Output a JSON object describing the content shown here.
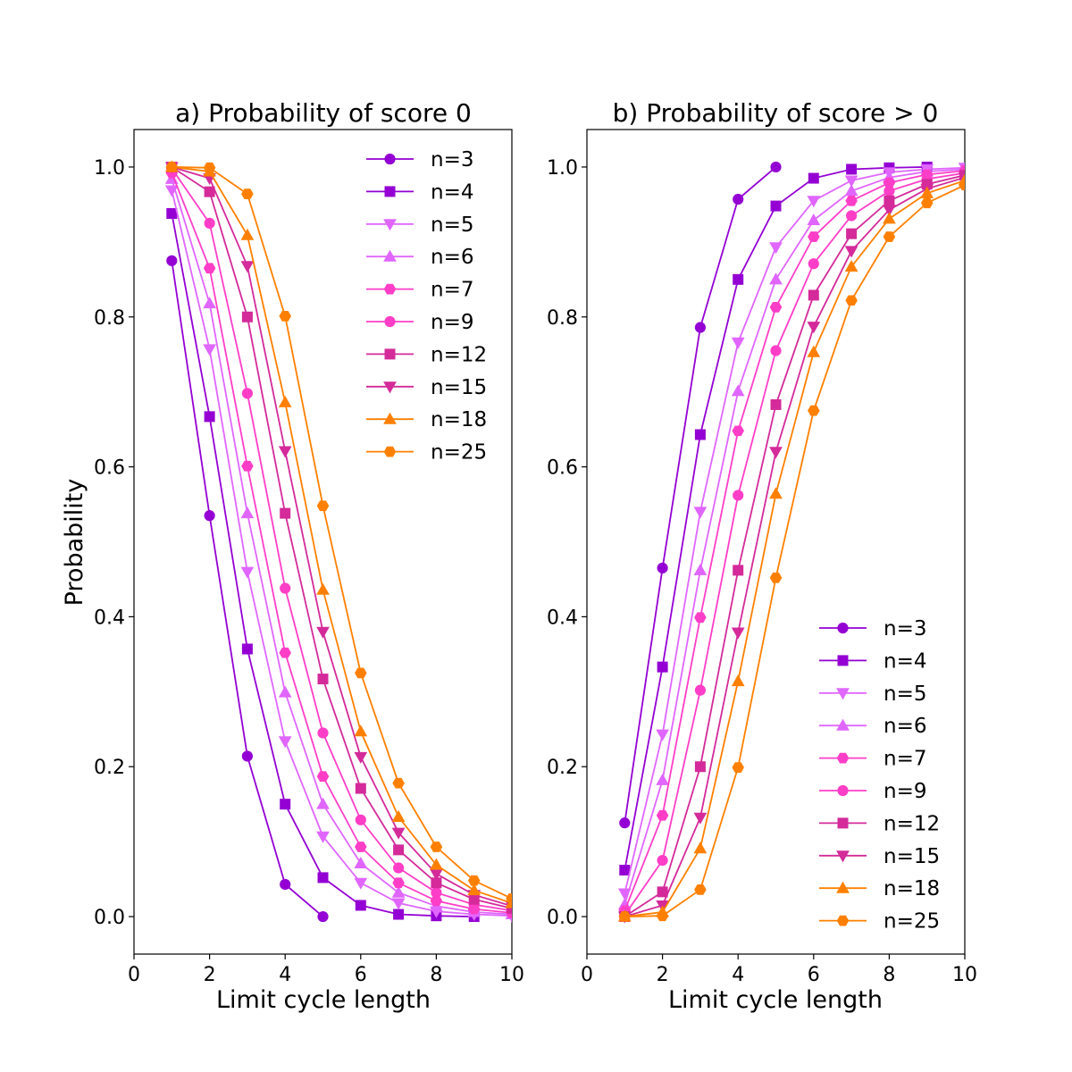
{
  "chart_data": [
    {
      "type": "line",
      "title": "a) Probability of score 0",
      "xlabel": "Limit cycle length",
      "ylabel": "Probability",
      "xlim": [
        0,
        10
      ],
      "ylim": [
        -0.05,
        1.05
      ],
      "xticks": [
        "0",
        "2",
        "4",
        "6",
        "8",
        "10"
      ],
      "yticks": [
        "0.0",
        "0.2",
        "0.4",
        "0.6",
        "0.8",
        "1.0"
      ],
      "legend_position": "top-right",
      "grid": false,
      "series": [
        {
          "name": "n=3",
          "color": "#9400D3",
          "marker": "circle",
          "x": [
            1,
            2,
            3,
            4,
            5
          ],
          "y": [
            0.875,
            0.535,
            0.214,
            0.043,
            0.0
          ]
        },
        {
          "name": "n=4",
          "color": "#9400D3",
          "marker": "square",
          "x": [
            1,
            2,
            3,
            4,
            5,
            6,
            7,
            8,
            9
          ],
          "y": [
            0.938,
            0.667,
            0.357,
            0.15,
            0.052,
            0.015,
            0.003,
            0.001,
            0.0
          ]
        },
        {
          "name": "n=5",
          "color": "#E066FF",
          "marker": "triangle-down",
          "x": [
            1,
            2,
            3,
            4,
            5,
            6,
            7,
            8,
            9,
            10
          ],
          "y": [
            0.969,
            0.757,
            0.46,
            0.234,
            0.107,
            0.045,
            0.018,
            0.007,
            0.003,
            0.001
          ]
        },
        {
          "name": "n=6",
          "color": "#E066FF",
          "marker": "triangle-up",
          "x": [
            1,
            2,
            3,
            4,
            5,
            6,
            7,
            8,
            9,
            10
          ],
          "y": [
            0.984,
            0.818,
            0.538,
            0.299,
            0.15,
            0.071,
            0.032,
            0.014,
            0.006,
            0.003
          ]
        },
        {
          "name": "n=7",
          "color": "#FF3EC8",
          "marker": "hexagon",
          "x": [
            1,
            2,
            3,
            4,
            5,
            6,
            7,
            8,
            9,
            10
          ],
          "y": [
            0.992,
            0.865,
            0.601,
            0.352,
            0.187,
            0.093,
            0.045,
            0.021,
            0.01,
            0.005
          ]
        },
        {
          "name": "n=9",
          "color": "#FF3EC8",
          "marker": "circle",
          "x": [
            1,
            2,
            3,
            4,
            5,
            6,
            7,
            8,
            9,
            10
          ],
          "y": [
            0.998,
            0.925,
            0.698,
            0.438,
            0.245,
            0.129,
            0.065,
            0.032,
            0.016,
            0.008
          ]
        },
        {
          "name": "n=12",
          "color": "#D42A9A",
          "marker": "square",
          "x": [
            1,
            2,
            3,
            4,
            5,
            6,
            7,
            8,
            9,
            10
          ],
          "y": [
            1.0,
            0.967,
            0.8,
            0.538,
            0.317,
            0.171,
            0.089,
            0.045,
            0.023,
            0.011
          ]
        },
        {
          "name": "n=15",
          "color": "#D42A9A",
          "marker": "triangle-down",
          "x": [
            1,
            2,
            3,
            4,
            5,
            6,
            7,
            8,
            9,
            10
          ],
          "y": [
            1.0,
            0.985,
            0.868,
            0.621,
            0.38,
            0.213,
            0.112,
            0.057,
            0.029,
            0.014
          ]
        },
        {
          "name": "n=18",
          "color": "#FF8000",
          "marker": "triangle-up",
          "x": [
            1,
            2,
            3,
            4,
            5,
            6,
            7,
            8,
            9,
            10
          ],
          "y": [
            1.0,
            0.994,
            0.909,
            0.686,
            0.436,
            0.247,
            0.133,
            0.069,
            0.035,
            0.018
          ]
        },
        {
          "name": "n=25",
          "color": "#FF8000",
          "marker": "hexagon",
          "x": [
            1,
            2,
            3,
            4,
            5,
            6,
            7,
            8,
            9,
            10
          ],
          "y": [
            1.0,
            0.999,
            0.964,
            0.801,
            0.548,
            0.325,
            0.178,
            0.093,
            0.048,
            0.024
          ]
        }
      ]
    },
    {
      "type": "line",
      "title": "b) Probability of score > 0",
      "xlabel": "Limit cycle length",
      "ylabel": "",
      "xlim": [
        0,
        10
      ],
      "ylim": [
        -0.05,
        1.05
      ],
      "xticks": [
        "0",
        "2",
        "4",
        "6",
        "8",
        "10"
      ],
      "yticks": [
        "0.0",
        "0.2",
        "0.4",
        "0.6",
        "0.8",
        "1.0"
      ],
      "legend_position": "lower-right",
      "grid": false,
      "series": [
        {
          "name": "n=3",
          "color": "#9400D3",
          "marker": "circle",
          "x": [
            1,
            2,
            3,
            4,
            5
          ],
          "y": [
            0.125,
            0.465,
            0.786,
            0.957,
            1.0
          ]
        },
        {
          "name": "n=4",
          "color": "#9400D3",
          "marker": "square",
          "x": [
            1,
            2,
            3,
            4,
            5,
            6,
            7,
            8,
            9
          ],
          "y": [
            0.062,
            0.333,
            0.643,
            0.85,
            0.948,
            0.985,
            0.997,
            0.999,
            1.0
          ]
        },
        {
          "name": "n=5",
          "color": "#E066FF",
          "marker": "triangle-down",
          "x": [
            1,
            2,
            3,
            4,
            5,
            6,
            7,
            8,
            9,
            10
          ],
          "y": [
            0.031,
            0.243,
            0.54,
            0.766,
            0.893,
            0.955,
            0.982,
            0.993,
            0.997,
            0.999
          ]
        },
        {
          "name": "n=6",
          "color": "#E066FF",
          "marker": "triangle-up",
          "x": [
            1,
            2,
            3,
            4,
            5,
            6,
            7,
            8,
            9,
            10
          ],
          "y": [
            0.016,
            0.182,
            0.462,
            0.701,
            0.85,
            0.929,
            0.968,
            0.986,
            0.994,
            0.997
          ]
        },
        {
          "name": "n=7",
          "color": "#FF3EC8",
          "marker": "hexagon",
          "x": [
            1,
            2,
            3,
            4,
            5,
            6,
            7,
            8,
            9,
            10
          ],
          "y": [
            0.008,
            0.135,
            0.399,
            0.648,
            0.813,
            0.907,
            0.955,
            0.979,
            0.99,
            0.995
          ]
        },
        {
          "name": "n=9",
          "color": "#FF3EC8",
          "marker": "circle",
          "x": [
            1,
            2,
            3,
            4,
            5,
            6,
            7,
            8,
            9,
            10
          ],
          "y": [
            0.002,
            0.075,
            0.302,
            0.562,
            0.755,
            0.871,
            0.935,
            0.968,
            0.984,
            0.992
          ]
        },
        {
          "name": "n=12",
          "color": "#D42A9A",
          "marker": "square",
          "x": [
            1,
            2,
            3,
            4,
            5,
            6,
            7,
            8,
            9,
            10
          ],
          "y": [
            0.0,
            0.033,
            0.2,
            0.462,
            0.683,
            0.829,
            0.911,
            0.955,
            0.977,
            0.989
          ]
        },
        {
          "name": "n=15",
          "color": "#D42A9A",
          "marker": "triangle-down",
          "x": [
            1,
            2,
            3,
            4,
            5,
            6,
            7,
            8,
            9,
            10
          ],
          "y": [
            0.0,
            0.015,
            0.132,
            0.379,
            0.62,
            0.787,
            0.888,
            0.943,
            0.971,
            0.986
          ]
        },
        {
          "name": "n=18",
          "color": "#FF8000",
          "marker": "triangle-up",
          "x": [
            1,
            2,
            3,
            4,
            5,
            6,
            7,
            8,
            9,
            10
          ],
          "y": [
            0.0,
            0.006,
            0.091,
            0.314,
            0.564,
            0.753,
            0.867,
            0.931,
            0.965,
            0.982
          ]
        },
        {
          "name": "n=25",
          "color": "#FF8000",
          "marker": "hexagon",
          "x": [
            1,
            2,
            3,
            4,
            5,
            6,
            7,
            8,
            9,
            10
          ],
          "y": [
            0.0,
            0.001,
            0.036,
            0.199,
            0.452,
            0.675,
            0.822,
            0.907,
            0.952,
            0.976
          ]
        }
      ]
    }
  ]
}
